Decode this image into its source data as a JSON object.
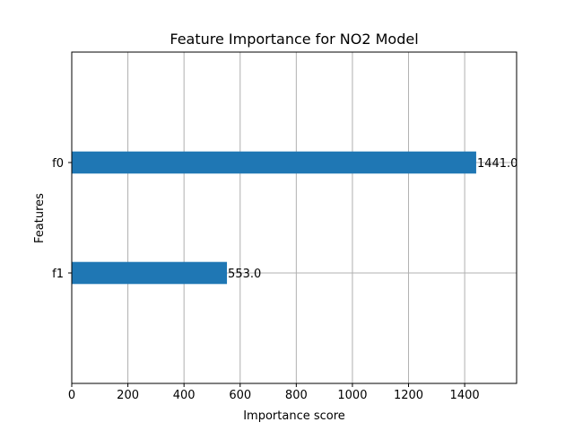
{
  "chart_data": {
    "type": "bar",
    "orientation": "horizontal",
    "title": "Feature Importance for NO2 Model",
    "xlabel": "Importance score",
    "ylabel": "Features",
    "categories": [
      "f0",
      "f1"
    ],
    "values": [
      1441.0,
      553.0
    ],
    "data_labels": [
      "1441.0",
      "553.0"
    ],
    "xlim": [
      0,
      1585
    ],
    "xticks": [
      0,
      200,
      400,
      600,
      800,
      1000,
      1200,
      1400
    ],
    "grid": true,
    "bar_color": "#1f77b4",
    "grid_color": "#b0b0b0"
  }
}
